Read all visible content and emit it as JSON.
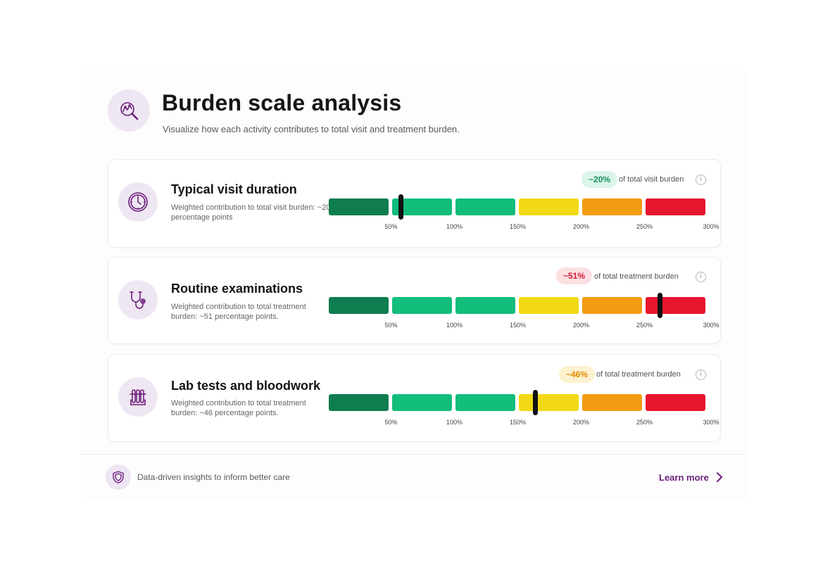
{
  "header": {
    "title": "Burden scale analysis",
    "subtitle": "Visualize how each activity contributes to total visit and treatment burden.",
    "icon": "chart-search-icon"
  },
  "colors": {
    "accent": "#6b1f7a",
    "icon_bg": "#efe6f3",
    "segments": [
      "#0f7d4f",
      "#13bd7b",
      "#13bd7b",
      "#f2d915",
      "#f39c12",
      "#e8152e"
    ]
  },
  "scale": {
    "ticks": [
      "50%",
      "100%",
      "150%",
      "200%",
      "250%",
      "300%"
    ],
    "tick_values": [
      50,
      100,
      150,
      200,
      250,
      300
    ],
    "min": 0,
    "max": 300
  },
  "cards": [
    {
      "title": "Typical visit duration",
      "description": "Weighted contribution to total visit burden: ~20 percentage points",
      "badge": "~20%",
      "badge_caption": "of total visit burden",
      "badge_bg": "#dcf5ea",
      "badge_color": "#17915a",
      "marker_value": 58,
      "icon": "clock-icon"
    },
    {
      "title": "Routine examinations",
      "description": "Weighted contribution to total treatment burden: ~51 percentage points.",
      "badge": "~51%",
      "badge_caption": "of total treatment burden",
      "badge_bg": "#fbdfe2",
      "badge_color": "#d11a33",
      "marker_value": 262,
      "icon": "stethoscope-icon"
    },
    {
      "title": "Lab tests and bloodwork",
      "description": "Weighted contribution to total treatment burden: ~46 percentage points.",
      "badge": "~46%",
      "badge_caption": "of total treatment burden",
      "badge_bg": "#fdf2cf",
      "badge_color": "#e08a00",
      "marker_value": 164,
      "icon": "test-tubes-icon"
    }
  ],
  "footer": {
    "text": "Data-driven insights to inform better care",
    "link_label": "Learn more",
    "icon": "shield-icon"
  }
}
